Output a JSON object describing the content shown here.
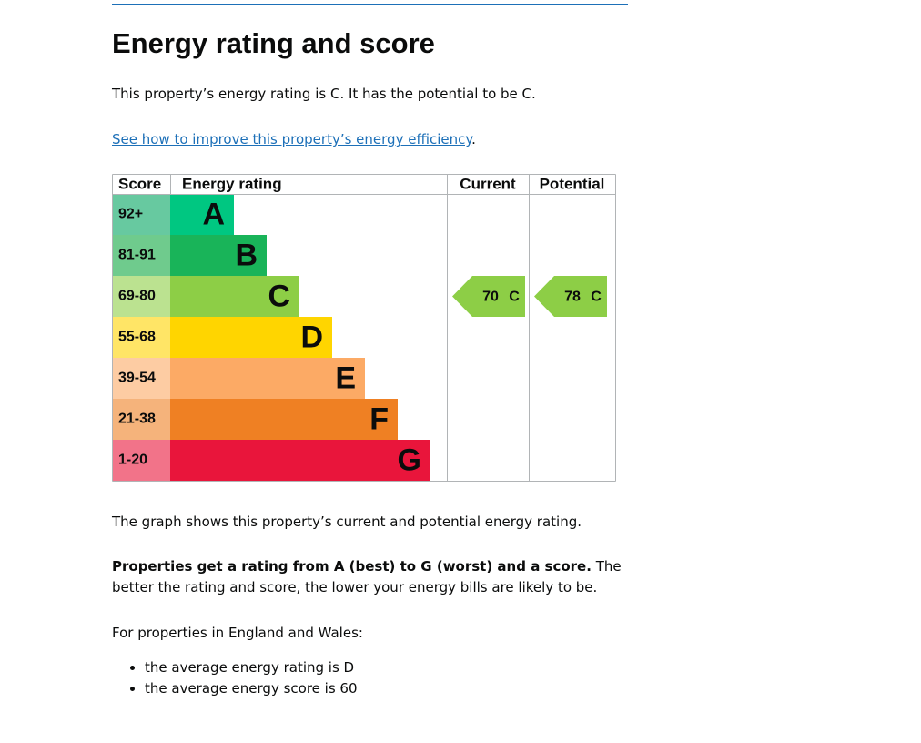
{
  "heading": "Energy rating and score",
  "intro": "This property’s energy rating is C. It has the potential to be C.",
  "link": {
    "text": "See how to improve this property’s energy efficiency",
    "suffix": "."
  },
  "table": {
    "headers": [
      "Score",
      "Energy rating",
      "Current",
      "Potential"
    ],
    "bands": [
      {
        "score": "92+",
        "letter": "A",
        "color": "#00c781",
        "score_color": "#67c9a0"
      },
      {
        "score": "81-91",
        "letter": "B",
        "color": "#19b459",
        "score_color": "#6fcb8d"
      },
      {
        "score": "69-80",
        "letter": "C",
        "color": "#8dce46",
        "score_color": "#bbe290"
      },
      {
        "score": "55-68",
        "letter": "D",
        "color": "#ffd500",
        "score_color": "#ffe566"
      },
      {
        "score": "39-54",
        "letter": "E",
        "color": "#fcaa65",
        "score_color": "#fdcca3"
      },
      {
        "score": "21-38",
        "letter": "F",
        "color": "#ef8023",
        "score_color": "#f5b37b"
      },
      {
        "score": "1-20",
        "letter": "G",
        "color": "#e9153b",
        "score_color": "#f27389"
      }
    ],
    "current": {
      "score": 70,
      "letter": "C"
    },
    "potential": {
      "score": 78,
      "letter": "C"
    }
  },
  "graph_note": "The graph shows this property’s current and potential energy rating.",
  "rating_info": {
    "bold": "Properties get a rating from A (best) to G (worst) and a score.",
    "rest": " The better the rating and score, the lower your energy bills are likely to be."
  },
  "average_intro": "For properties in England and Wales:",
  "averages": [
    "the average energy rating is D",
    "the average energy score is 60"
  ]
}
